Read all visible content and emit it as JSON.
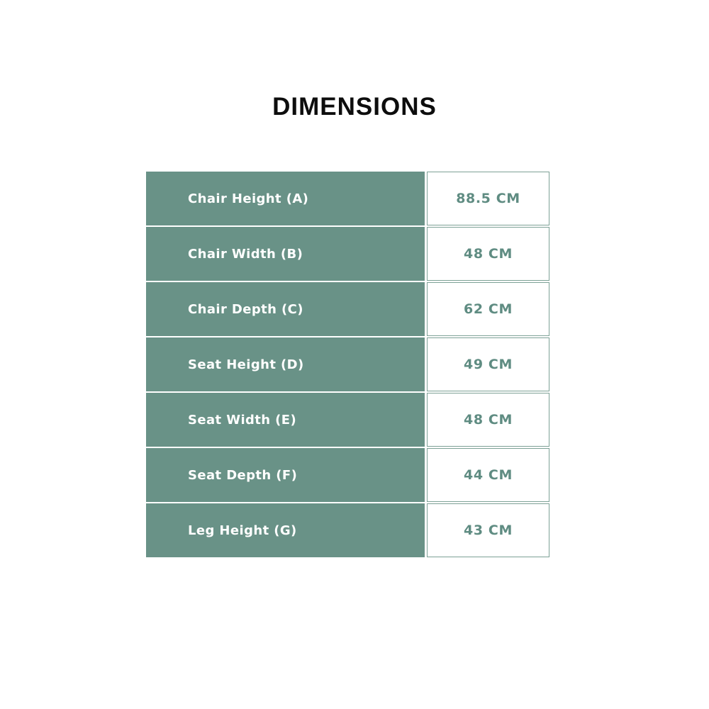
{
  "title": "DIMENSIONS",
  "colors": {
    "label_cell_background": "#699287",
    "label_text": "#ffffff",
    "value_text": "#5f8c82",
    "value_border": "#7da196",
    "title_text": "#0d0d0d",
    "page_background": "#ffffff"
  },
  "table": {
    "rows": [
      {
        "label": "Chair Height (A)",
        "value": "88.5 CM"
      },
      {
        "label": "Chair Width (B)",
        "value": "48 CM"
      },
      {
        "label": "Chair Depth (C)",
        "value": "62 CM"
      },
      {
        "label": "Seat Height (D)",
        "value": "49 CM"
      },
      {
        "label": "Seat Width (E)",
        "value": "48 CM"
      },
      {
        "label": "Seat Depth (F)",
        "value": "44 CM"
      },
      {
        "label": "Leg Height (G)",
        "value": "43 CM"
      }
    ]
  }
}
